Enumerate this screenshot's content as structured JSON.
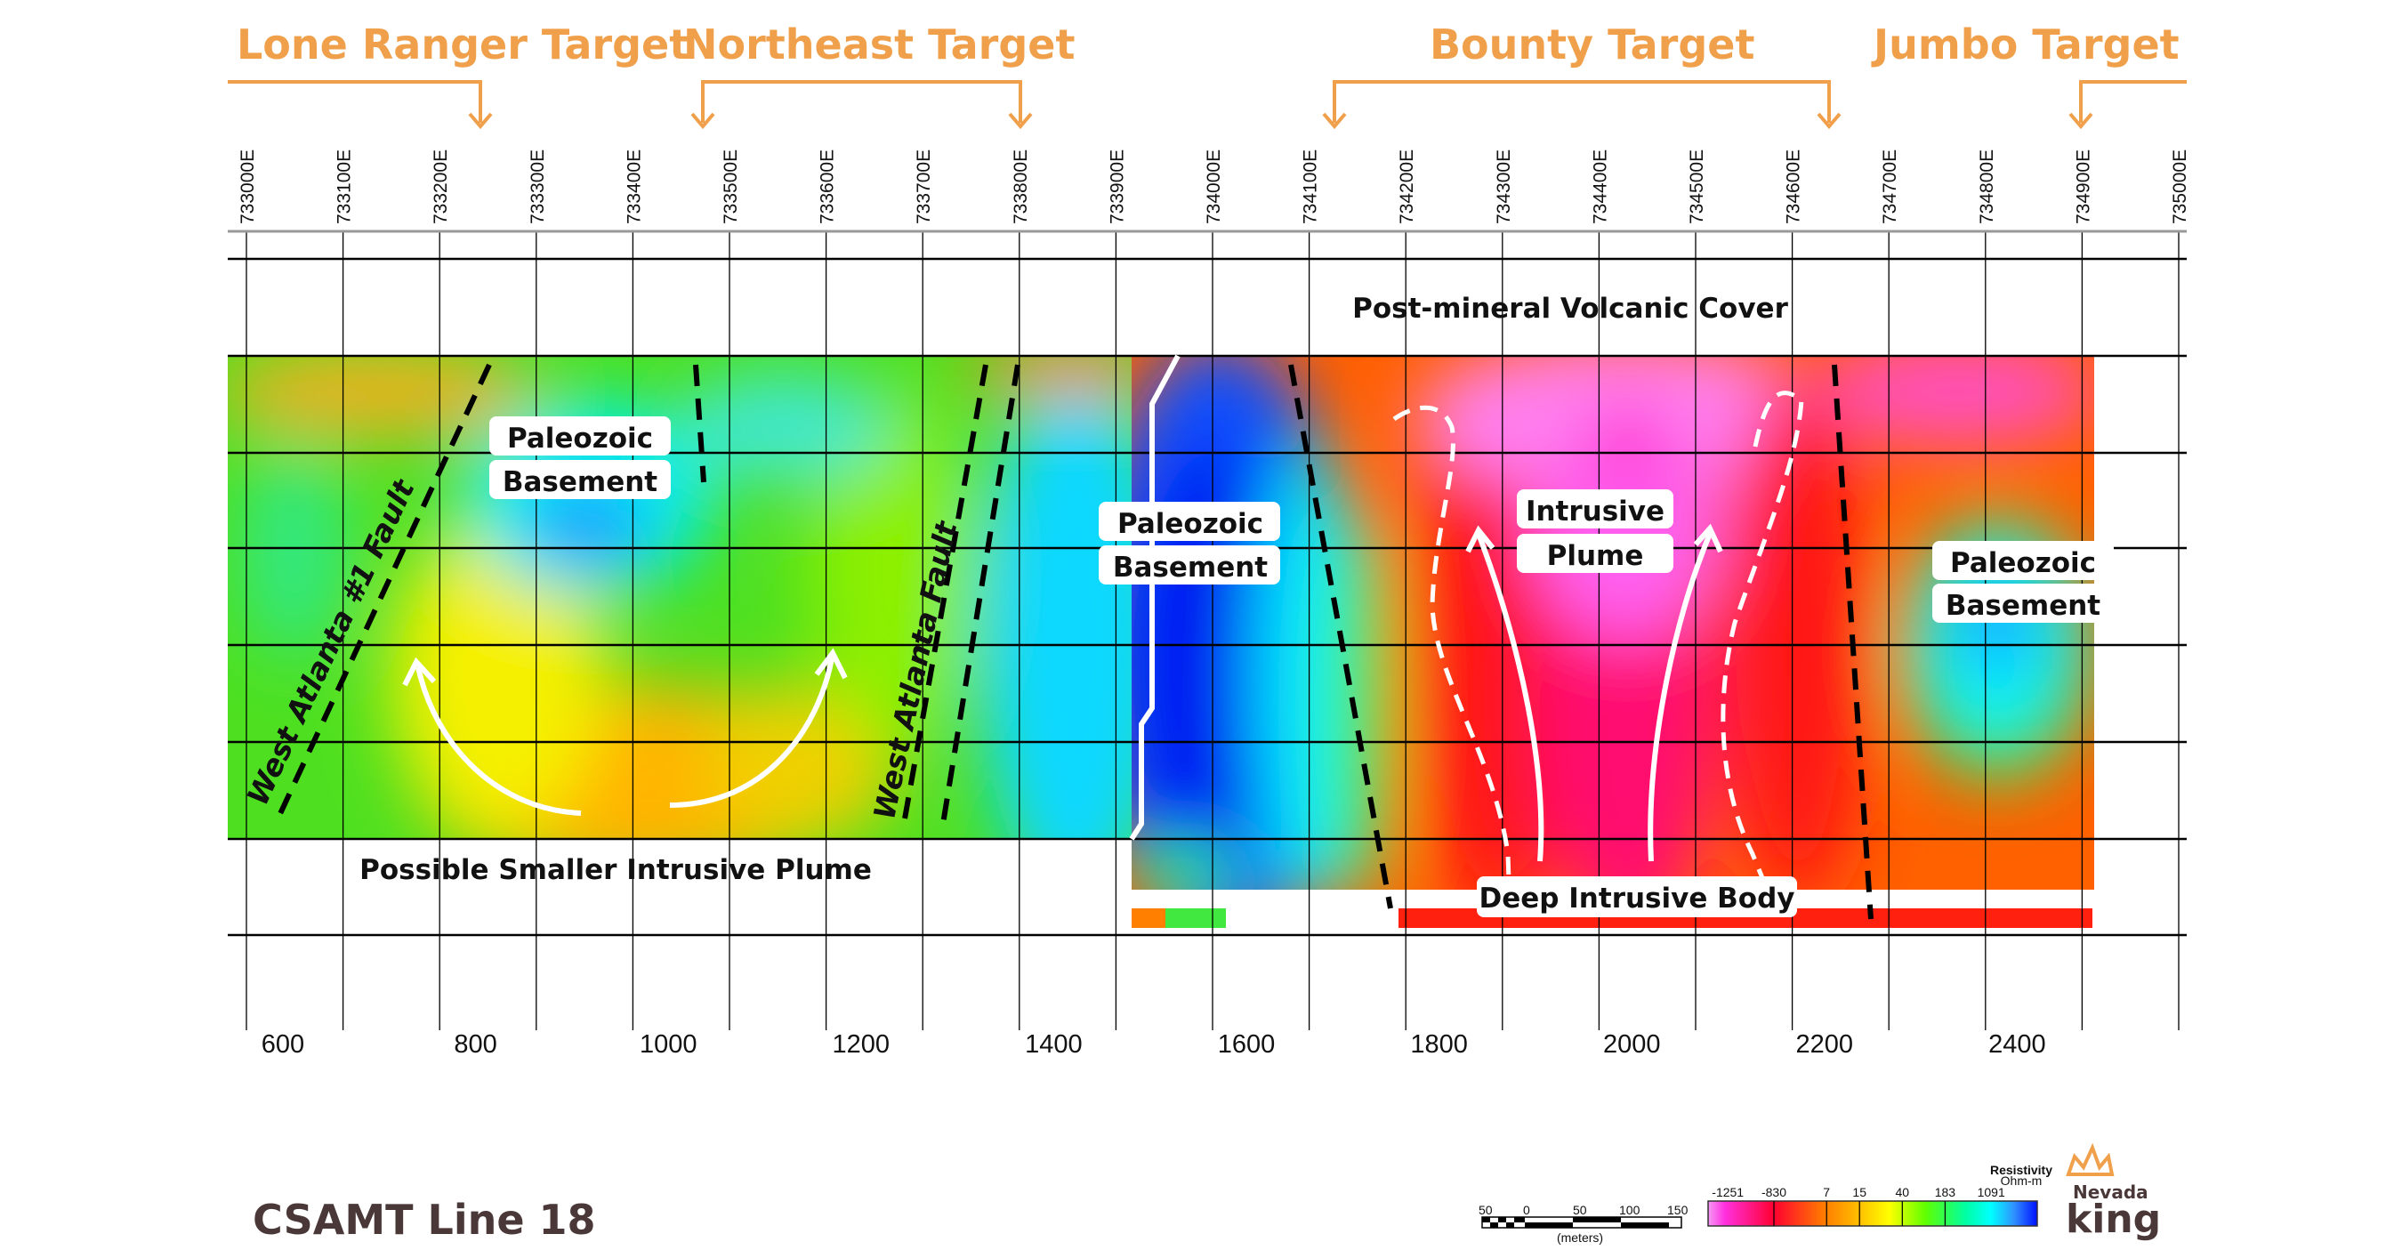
{
  "targets": {
    "lone_ranger": "Lone Ranger Target",
    "northeast": "Northeast Target",
    "bounty": "Bounty Target",
    "jumbo": "Jumbo Target"
  },
  "eastings": [
    "733000E",
    "733100E",
    "733200E",
    "733300E",
    "733400E",
    "733500E",
    "733600E",
    "733700E",
    "733800E",
    "733900E",
    "734000E",
    "734100E",
    "734200E",
    "734300E",
    "734400E",
    "734500E",
    "734600E",
    "734700E",
    "734800E",
    "734900E",
    "735000E"
  ],
  "distances": [
    "600",
    "800",
    "1000",
    "1200",
    "1400",
    "1600",
    "1800",
    "2000",
    "2200",
    "2400"
  ],
  "labels": {
    "volcanic_cover": "Post-mineral Volcanic Cover",
    "paleozoic": "Paleozoic",
    "basement": "Basement",
    "intrusive": "Intrusive",
    "plume": "Plume",
    "smaller_plume": "Possible Smaller Intrusive Plume",
    "deep_body": "Deep Intrusive Body",
    "fault1": "West Atlanta #1 Fault",
    "fault2": "West Atlanta Fault"
  },
  "title": "CSAMT Line 18",
  "scale_bar": {
    "ticks": [
      "50",
      "0",
      "50",
      "100",
      "150"
    ],
    "unit": "(meters)"
  },
  "legend": {
    "title": "Resistivity",
    "unit": "Ohm-m",
    "ticks": [
      "-1251",
      "-830",
      "7",
      "15",
      "40",
      "183",
      "1091"
    ]
  },
  "logo": {
    "line1": "Nevada",
    "line2": "king"
  },
  "colors": {
    "accent": "#f0a04b",
    "title": "#4a3838"
  }
}
